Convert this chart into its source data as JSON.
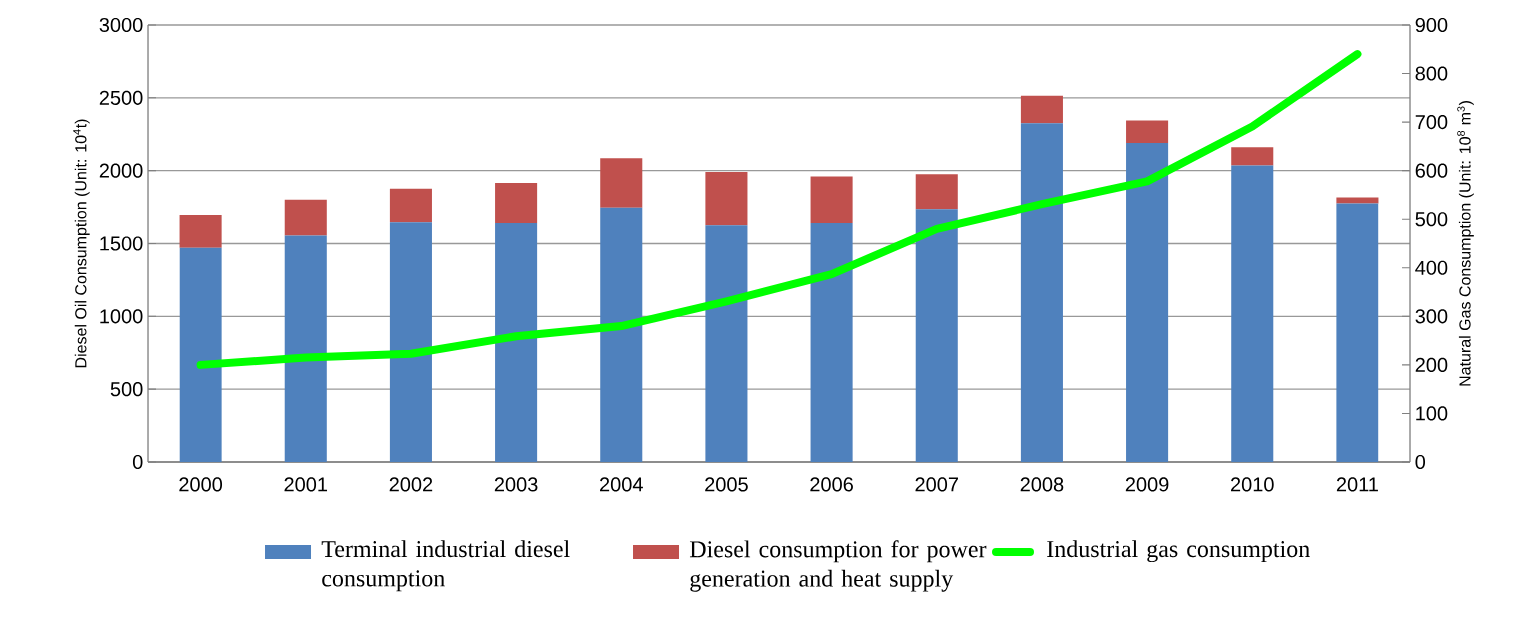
{
  "chart_data": {
    "type": "bar",
    "stacked": true,
    "categories": [
      "2000",
      "2001",
      "2002",
      "2003",
      "2004",
      "2005",
      "2006",
      "2007",
      "2008",
      "2009",
      "2010",
      "2011"
    ],
    "ylabel": "Diesel Oil Consumption (Unit: 10$^{4}$t)",
    "y2label": "Natural Gas Consumption (Unit: 10$^{8}$ m$^{3}$)",
    "ylim": [
      0,
      3000
    ],
    "yticks": [
      0,
      500,
      1000,
      1500,
      2000,
      2500,
      3000
    ],
    "y2lim": [
      0,
      900
    ],
    "y2ticks": [
      0,
      100,
      200,
      300,
      400,
      500,
      600,
      700,
      800,
      900
    ],
    "grid": "y",
    "legend": "bottom",
    "marker": "none",
    "line_style": "solid",
    "series": [
      {
        "name": "Terminal industrial diesel consumption",
        "color": "#4f81bd",
        "values": [
          1470,
          1555,
          1645,
          1640,
          1745,
          1625,
          1640,
          1735,
          2325,
          2190,
          2035,
          1775
        ]
      },
      {
        "name": "Diesel consumption for power generation and heat supply",
        "color": "#c0504d",
        "values": [
          225,
          245,
          230,
          275,
          340,
          365,
          320,
          240,
          190,
          155,
          125,
          40
        ]
      },
      {
        "name": "Industrial gas consumption",
        "type": "line",
        "axis": "y2",
        "color": "#00ff00",
        "values": [
          200,
          215,
          223,
          259,
          280,
          331,
          387,
          480,
          531,
          578,
          691,
          840
        ]
      }
    ]
  }
}
